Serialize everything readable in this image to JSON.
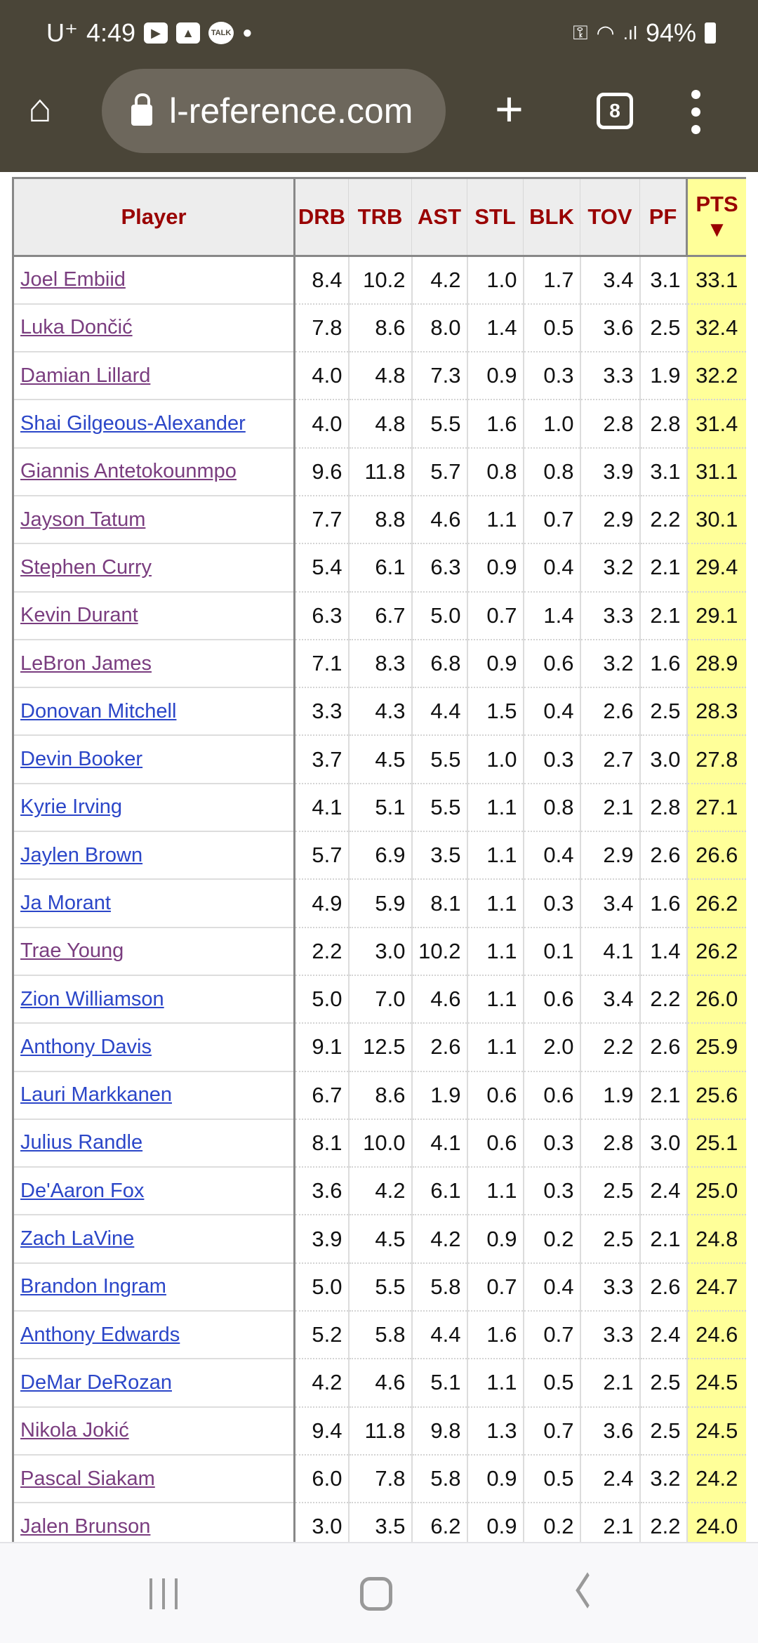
{
  "status_bar": {
    "carrier": "U⁺",
    "time": "4:49",
    "battery": "94%"
  },
  "browser": {
    "url": "l-reference.com",
    "tab_count": "8"
  },
  "table": {
    "columns": [
      "Player",
      "DRB",
      "TRB",
      "AST",
      "STL",
      "BLK",
      "TOV",
      "PF",
      "PTS"
    ],
    "sort_indicator": "▼",
    "rows": [
      {
        "player": "Joel Embiid",
        "visited": true,
        "stats": [
          "8.4",
          "10.2",
          "4.2",
          "1.0",
          "1.7",
          "3.4",
          "3.1",
          "33.1"
        ]
      },
      {
        "player": "Luka Dončić",
        "visited": true,
        "stats": [
          "7.8",
          "8.6",
          "8.0",
          "1.4",
          "0.5",
          "3.6",
          "2.5",
          "32.4"
        ]
      },
      {
        "player": "Damian Lillard",
        "visited": true,
        "stats": [
          "4.0",
          "4.8",
          "7.3",
          "0.9",
          "0.3",
          "3.3",
          "1.9",
          "32.2"
        ]
      },
      {
        "player": "Shai Gilgeous-Alexander",
        "visited": false,
        "stats": [
          "4.0",
          "4.8",
          "5.5",
          "1.6",
          "1.0",
          "2.8",
          "2.8",
          "31.4"
        ]
      },
      {
        "player": "Giannis Antetokounmpo",
        "visited": true,
        "stats": [
          "9.6",
          "11.8",
          "5.7",
          "0.8",
          "0.8",
          "3.9",
          "3.1",
          "31.1"
        ]
      },
      {
        "player": "Jayson Tatum",
        "visited": true,
        "stats": [
          "7.7",
          "8.8",
          "4.6",
          "1.1",
          "0.7",
          "2.9",
          "2.2",
          "30.1"
        ]
      },
      {
        "player": "Stephen Curry",
        "visited": true,
        "stats": [
          "5.4",
          "6.1",
          "6.3",
          "0.9",
          "0.4",
          "3.2",
          "2.1",
          "29.4"
        ]
      },
      {
        "player": "Kevin Durant",
        "visited": true,
        "stats": [
          "6.3",
          "6.7",
          "5.0",
          "0.7",
          "1.4",
          "3.3",
          "2.1",
          "29.1"
        ]
      },
      {
        "player": "LeBron James",
        "visited": true,
        "stats": [
          "7.1",
          "8.3",
          "6.8",
          "0.9",
          "0.6",
          "3.2",
          "1.6",
          "28.9"
        ]
      },
      {
        "player": "Donovan Mitchell",
        "visited": false,
        "stats": [
          "3.3",
          "4.3",
          "4.4",
          "1.5",
          "0.4",
          "2.6",
          "2.5",
          "28.3"
        ]
      },
      {
        "player": "Devin Booker",
        "visited": false,
        "stats": [
          "3.7",
          "4.5",
          "5.5",
          "1.0",
          "0.3",
          "2.7",
          "3.0",
          "27.8"
        ]
      },
      {
        "player": "Kyrie Irving",
        "visited": false,
        "stats": [
          "4.1",
          "5.1",
          "5.5",
          "1.1",
          "0.8",
          "2.1",
          "2.8",
          "27.1"
        ]
      },
      {
        "player": "Jaylen Brown",
        "visited": false,
        "stats": [
          "5.7",
          "6.9",
          "3.5",
          "1.1",
          "0.4",
          "2.9",
          "2.6",
          "26.6"
        ]
      },
      {
        "player": "Ja Morant",
        "visited": false,
        "stats": [
          "4.9",
          "5.9",
          "8.1",
          "1.1",
          "0.3",
          "3.4",
          "1.6",
          "26.2"
        ]
      },
      {
        "player": "Trae Young",
        "visited": true,
        "stats": [
          "2.2",
          "3.0",
          "10.2",
          "1.1",
          "0.1",
          "4.1",
          "1.4",
          "26.2"
        ]
      },
      {
        "player": "Zion Williamson",
        "visited": false,
        "stats": [
          "5.0",
          "7.0",
          "4.6",
          "1.1",
          "0.6",
          "3.4",
          "2.2",
          "26.0"
        ]
      },
      {
        "player": "Anthony Davis",
        "visited": false,
        "stats": [
          "9.1",
          "12.5",
          "2.6",
          "1.1",
          "2.0",
          "2.2",
          "2.6",
          "25.9"
        ]
      },
      {
        "player": "Lauri Markkanen",
        "visited": false,
        "stats": [
          "6.7",
          "8.6",
          "1.9",
          "0.6",
          "0.6",
          "1.9",
          "2.1",
          "25.6"
        ]
      },
      {
        "player": "Julius Randle",
        "visited": false,
        "stats": [
          "8.1",
          "10.0",
          "4.1",
          "0.6",
          "0.3",
          "2.8",
          "3.0",
          "25.1"
        ]
      },
      {
        "player": "De'Aaron Fox",
        "visited": false,
        "stats": [
          "3.6",
          "4.2",
          "6.1",
          "1.1",
          "0.3",
          "2.5",
          "2.4",
          "25.0"
        ]
      },
      {
        "player": "Zach LaVine",
        "visited": false,
        "stats": [
          "3.9",
          "4.5",
          "4.2",
          "0.9",
          "0.2",
          "2.5",
          "2.1",
          "24.8"
        ]
      },
      {
        "player": "Brandon Ingram",
        "visited": false,
        "stats": [
          "5.0",
          "5.5",
          "5.8",
          "0.7",
          "0.4",
          "3.3",
          "2.6",
          "24.7"
        ]
      },
      {
        "player": "Anthony Edwards",
        "visited": false,
        "stats": [
          "5.2",
          "5.8",
          "4.4",
          "1.6",
          "0.7",
          "3.3",
          "2.4",
          "24.6"
        ]
      },
      {
        "player": "DeMar DeRozan",
        "visited": false,
        "stats": [
          "4.2",
          "4.6",
          "5.1",
          "1.1",
          "0.5",
          "2.1",
          "2.5",
          "24.5"
        ]
      },
      {
        "player": "Nikola Jokić",
        "visited": true,
        "stats": [
          "9.4",
          "11.8",
          "9.8",
          "1.3",
          "0.7",
          "3.6",
          "2.5",
          "24.5"
        ]
      },
      {
        "player": "Pascal Siakam",
        "visited": true,
        "stats": [
          "6.0",
          "7.8",
          "5.8",
          "0.9",
          "0.5",
          "2.4",
          "3.2",
          "24.2"
        ]
      },
      {
        "player": "Jalen Brunson",
        "visited": true,
        "stats": [
          "3.0",
          "3.5",
          "6.2",
          "0.9",
          "0.2",
          "2.1",
          "2.2",
          "24.0"
        ]
      }
    ]
  },
  "colors": {
    "visited_link": "#7a3d7f",
    "unvisited_link": "#2b46c8",
    "header_text": "#990000",
    "sorted_column_bg": "#ffff99",
    "toolbar_bg": "#4a4538"
  }
}
